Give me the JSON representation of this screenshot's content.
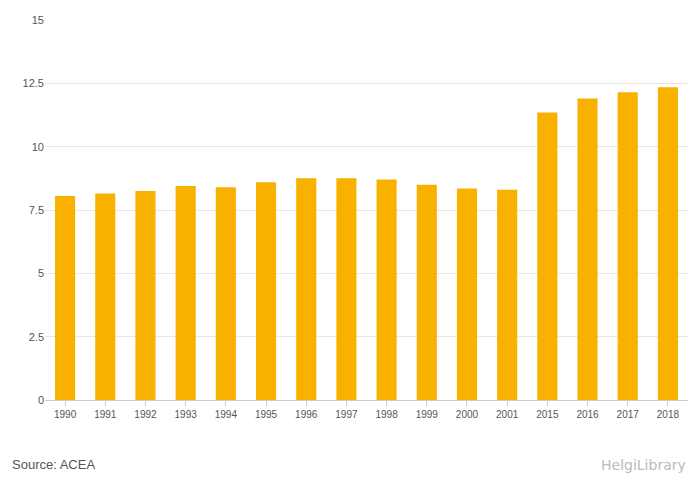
{
  "chart_data": {
    "type": "bar",
    "categories": [
      "1990",
      "1991",
      "1992",
      "1993",
      "1994",
      "1995",
      "1996",
      "1997",
      "1998",
      "1999",
      "2000",
      "2001",
      "2015",
      "2016",
      "2017",
      "2018"
    ],
    "values": [
      8.05,
      8.15,
      8.25,
      8.45,
      8.4,
      8.6,
      8.75,
      8.75,
      8.7,
      8.5,
      8.35,
      8.3,
      11.35,
      11.9,
      12.15,
      12.35
    ],
    "color": "#f9b100",
    "ylim": [
      0,
      15
    ],
    "yticks": [
      0,
      2.5,
      5,
      7.5,
      10,
      12.5,
      15
    ],
    "grid": true,
    "annotations": [
      "Source: ACEA",
      "HelgiLibrary"
    ]
  }
}
